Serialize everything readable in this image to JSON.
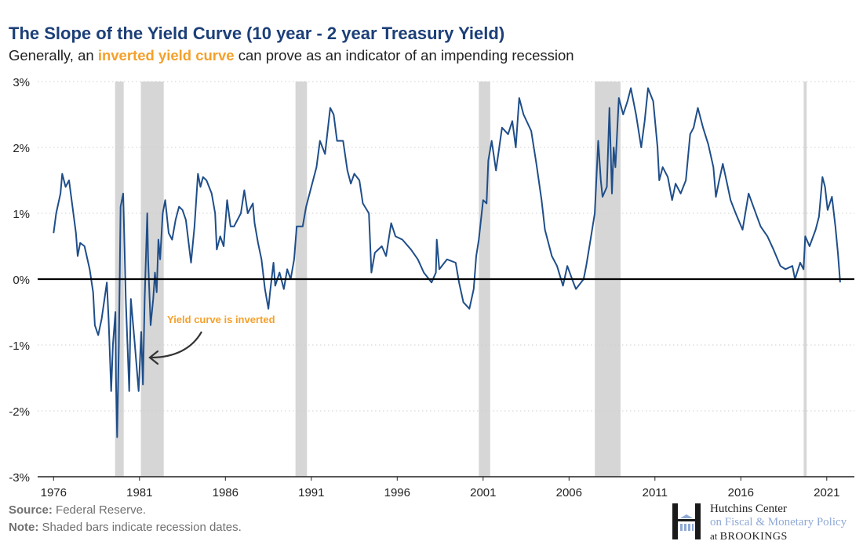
{
  "header": {
    "title": "The Slope of the Yield Curve (10 year - 2 year Treasury Yield)",
    "subtitle_before": "Generally, an ",
    "subtitle_highlight": "inverted yield curve",
    "subtitle_after": " can prove as an indicator of an impending recession"
  },
  "footer": {
    "source_label": "Source:",
    "source_text": " Federal Reserve.",
    "note_label": "Note:",
    "note_text": " Shaded bars indicate recession dates."
  },
  "logo": {
    "line1": "Hutchins Center",
    "line2": "on Fiscal & Monetary Policy",
    "line3_prefix": "at ",
    "line3_brand": "BROOKINGS"
  },
  "colors": {
    "line": "#1f4e89",
    "recession": "#d6d6d6",
    "title": "#1c3f78",
    "highlight": "#f5a02a",
    "zero_line": "#000000"
  },
  "chart_data": {
    "type": "line",
    "title": "The Slope of the Yield Curve (10 year - 2 year Treasury Yield)",
    "xlabel": "",
    "ylabel": "",
    "ylim": [
      -3,
      3
    ],
    "xlim": [
      1975.5,
      2023.1
    ],
    "yticks": [
      3,
      2,
      1,
      0,
      -1,
      -2,
      -3
    ],
    "ytick_labels": [
      "3%",
      "2%",
      "1%",
      "0%",
      "-1%",
      "-2%",
      "-3%"
    ],
    "xticks": [
      1976.42,
      1981.42,
      1986.42,
      1991.42,
      1996.42,
      2001.42,
      2006.42,
      2011.42,
      2016.42,
      2021.42
    ],
    "xtick_labels": [
      "1976",
      "1981",
      "1986",
      "1991",
      "1996",
      "2001",
      "2006",
      "2011",
      "2016",
      "2021"
    ],
    "grid": "horizontal dotted",
    "annotation": {
      "text": "Yield curve is inverted",
      "x": 1981.9,
      "y": -1.2
    },
    "recessions": [
      [
        1980.0,
        1980.5
      ],
      [
        1981.5,
        1982.83
      ],
      [
        1990.5,
        1991.17
      ],
      [
        2001.17,
        2001.83
      ],
      [
        2007.92,
        2009.42
      ],
      [
        2020.08,
        2020.25
      ]
    ],
    "series": [
      {
        "x": [
          1976.42,
          1976.57,
          1976.82,
          1976.92,
          1977.12,
          1977.32,
          1977.52,
          1977.72,
          1977.82,
          1977.97,
          1978.22,
          1978.52,
          1978.72,
          1978.82,
          1979.02,
          1979.22,
          1979.52,
          1979.62,
          1979.77,
          1979.87,
          1980.02,
          1980.05,
          1980.12,
          1980.22,
          1980.32,
          1980.47,
          1980.55,
          1980.62,
          1980.72,
          1980.82,
          1980.92,
          1981.12,
          1981.37,
          1981.52,
          1981.62,
          1981.72,
          1981.87,
          1981.92,
          1982.07,
          1982.22,
          1982.32,
          1982.42,
          1982.52,
          1982.62,
          1982.77,
          1982.92,
          1983.12,
          1983.32,
          1983.52,
          1983.72,
          1983.92,
          1984.12,
          1984.42,
          1984.62,
          1984.82,
          1984.97,
          1985.12,
          1985.32,
          1985.62,
          1985.82,
          1985.92,
          1986.12,
          1986.32,
          1986.52,
          1986.72,
          1986.92,
          1987.32,
          1987.52,
          1987.72,
          1988.02,
          1988.12,
          1988.32,
          1988.52,
          1988.72,
          1988.92,
          1989.02,
          1989.22,
          1989.32,
          1989.57,
          1989.82,
          1990.02,
          1990.22,
          1990.42,
          1990.57,
          1990.92,
          1991.12,
          1991.42,
          1991.72,
          1991.92,
          1992.22,
          1992.52,
          1992.72,
          1992.92,
          1993.27,
          1993.52,
          1993.72,
          1993.92,
          1994.22,
          1994.42,
          1994.77,
          1994.92,
          1995.12,
          1995.52,
          1995.77,
          1996.07,
          1996.32,
          1996.72,
          1997.22,
          1997.62,
          1997.97,
          1998.42,
          1998.67,
          1998.72,
          1998.87,
          1999.32,
          1999.82,
          2000.02,
          2000.27,
          2000.62,
          2000.87,
          2001.02,
          2001.17,
          2001.42,
          2001.62,
          2001.72,
          2001.92,
          2002.17,
          2002.52,
          2002.87,
          2003.12,
          2003.32,
          2003.52,
          2003.77,
          2004.22,
          2004.52,
          2004.82,
          2005.02,
          2005.42,
          2005.72,
          2006.07,
          2006.32,
          2006.67,
          2006.82,
          2007.27,
          2007.42,
          2007.67,
          2007.92,
          2008.12,
          2008.27,
          2008.37,
          2008.62,
          2008.77,
          2008.92,
          2009.02,
          2009.12,
          2009.32,
          2009.57,
          2009.82,
          2010.02,
          2010.32,
          2010.62,
          2010.82,
          2011.02,
          2011.32,
          2011.57,
          2011.67,
          2011.87,
          2012.17,
          2012.42,
          2012.62,
          2012.92,
          2013.22,
          2013.47,
          2013.67,
          2013.92,
          2014.22,
          2014.52,
          2014.82,
          2014.97,
          2015.12,
          2015.37,
          2015.62,
          2015.82,
          2016.12,
          2016.52,
          2016.87,
          2017.22,
          2017.57,
          2017.97,
          2018.32,
          2018.72,
          2019.02,
          2019.42,
          2019.57,
          2019.87,
          2020.07,
          2020.17,
          2020.42,
          2020.77,
          2020.97,
          2021.17,
          2021.32,
          2021.47,
          2021.72,
          2021.92,
          2022.07,
          2022.2
        ],
        "y": [
          0.7,
          1.0,
          1.3,
          1.6,
          1.4,
          1.5,
          1.1,
          0.7,
          0.35,
          0.55,
          0.5,
          0.15,
          -0.2,
          -0.7,
          -0.85,
          -0.6,
          -0.05,
          -0.6,
          -1.7,
          -1.0,
          -0.5,
          -1.5,
          -2.4,
          -1.0,
          1.1,
          1.3,
          0.5,
          -0.3,
          -1.0,
          -1.7,
          -0.3,
          -0.9,
          -1.7,
          -0.8,
          -1.6,
          -0.3,
          1.0,
          0.3,
          -0.7,
          -0.3,
          0.1,
          -0.2,
          0.6,
          0.3,
          1.0,
          1.2,
          0.7,
          0.6,
          0.9,
          1.1,
          1.05,
          0.9,
          0.25,
          0.8,
          1.6,
          1.4,
          1.55,
          1.5,
          1.3,
          1.0,
          0.45,
          0.65,
          0.5,
          1.2,
          0.8,
          0.8,
          1.0,
          1.35,
          1.0,
          1.15,
          0.85,
          0.55,
          0.3,
          -0.15,
          -0.45,
          -0.2,
          0.25,
          -0.1,
          0.1,
          -0.15,
          0.15,
          0.0,
          0.3,
          0.8,
          0.8,
          1.1,
          1.4,
          1.7,
          2.1,
          1.9,
          2.6,
          2.5,
          2.1,
          2.1,
          1.65,
          1.45,
          1.6,
          1.5,
          1.15,
          1.0,
          0.1,
          0.4,
          0.5,
          0.35,
          0.85,
          0.65,
          0.6,
          0.45,
          0.3,
          0.1,
          -0.05,
          0.1,
          0.6,
          0.15,
          0.3,
          0.25,
          -0.05,
          -0.35,
          -0.45,
          -0.15,
          0.35,
          0.6,
          1.2,
          1.15,
          1.8,
          2.1,
          1.65,
          2.3,
          2.2,
          2.4,
          2.0,
          2.75,
          2.5,
          2.25,
          1.75,
          1.2,
          0.75,
          0.35,
          0.2,
          -0.1,
          0.2,
          -0.05,
          -0.15,
          0.0,
          0.2,
          0.6,
          1.0,
          2.1,
          1.5,
          1.25,
          1.4,
          2.6,
          1.3,
          2.0,
          1.7,
          2.75,
          2.5,
          2.7,
          2.9,
          2.5,
          2.0,
          2.4,
          2.9,
          2.7,
          2.0,
          1.5,
          1.7,
          1.55,
          1.2,
          1.45,
          1.3,
          1.5,
          2.2,
          2.3,
          2.6,
          2.3,
          2.05,
          1.7,
          1.25,
          1.45,
          1.75,
          1.45,
          1.2,
          1.0,
          0.75,
          1.3,
          1.05,
          0.8,
          0.65,
          0.45,
          0.2,
          0.15,
          0.2,
          0.0,
          0.25,
          0.15,
          0.65,
          0.5,
          0.75,
          0.95,
          1.55,
          1.4,
          1.05,
          1.25,
          0.8,
          0.4,
          -0.05
        ]
      }
    ]
  }
}
